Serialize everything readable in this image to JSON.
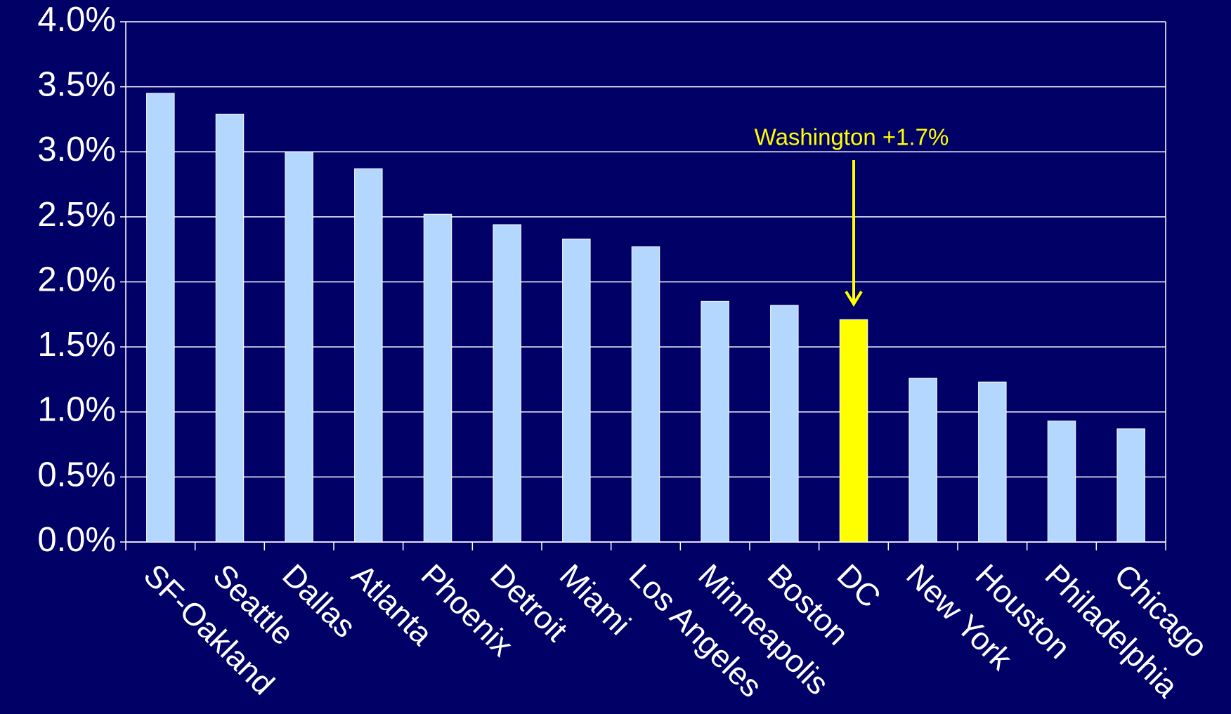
{
  "chart_data": {
    "type": "bar",
    "categories": [
      "SF-Oakland",
      "Seattle",
      "Dallas",
      "Atlanta",
      "Phoenix",
      "Detroit",
      "Miami",
      "Los Angeles",
      "Minneapolis",
      "Boston",
      "DC",
      "New York",
      "Houston",
      "Philadelphia",
      "Chicago"
    ],
    "values": [
      3.45,
      3.29,
      3.0,
      2.87,
      2.52,
      2.44,
      2.33,
      2.27,
      1.85,
      1.82,
      1.71,
      1.26,
      1.23,
      0.93,
      0.87
    ],
    "colors": [
      "#b3d7ff",
      "#b3d7ff",
      "#b3d7ff",
      "#b3d7ff",
      "#b3d7ff",
      "#b3d7ff",
      "#b3d7ff",
      "#b3d7ff",
      "#b3d7ff",
      "#b3d7ff",
      "#ffff00",
      "#b3d7ff",
      "#b3d7ff",
      "#b3d7ff",
      "#b3d7ff"
    ],
    "ylim": [
      0,
      4
    ],
    "yticks": [
      {
        "value": 0,
        "label": "0.0%"
      },
      {
        "value": 0.5,
        "label": "0.5%"
      },
      {
        "value": 1,
        "label": "1.0%"
      },
      {
        "value": 1.5,
        "label": "1.5%"
      },
      {
        "value": 2,
        "label": "2.0%"
      },
      {
        "value": 2.5,
        "label": "2.5%"
      },
      {
        "value": 3,
        "label": "3.0%"
      },
      {
        "value": 3.5,
        "label": "3.5%"
      },
      {
        "value": 4,
        "label": "4.0%"
      }
    ],
    "grid": true,
    "annotation": {
      "text": "Washington +1.7%",
      "category": "DC",
      "color": "#ffff00"
    }
  }
}
